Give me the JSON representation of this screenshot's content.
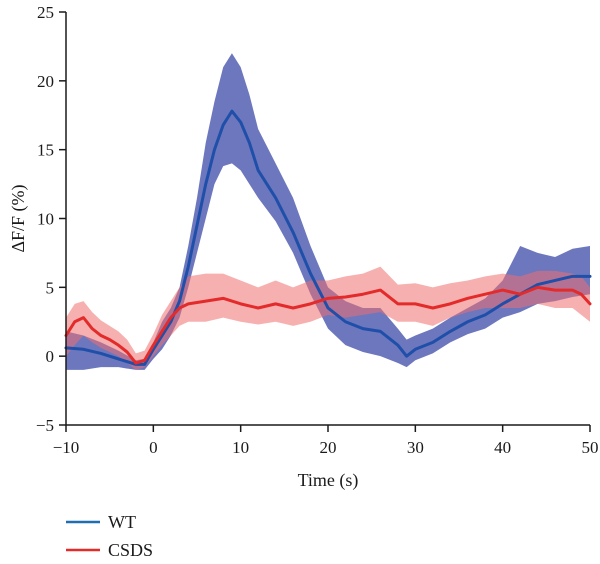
{
  "chart_data": {
    "type": "line",
    "xlabel": "Time (s)",
    "ylabel": "ΔF/F (%)",
    "xlim": [
      -10,
      50
    ],
    "ylim": [
      -5,
      25
    ],
    "xticks": [
      -10,
      0,
      10,
      20,
      30,
      40,
      50
    ],
    "yticks": [
      -5,
      0,
      5,
      10,
      15,
      20,
      25
    ],
    "xtick_labels": [
      "−10",
      "0",
      "10",
      "20",
      "30",
      "40",
      "50"
    ],
    "ytick_labels": [
      "−5",
      "0",
      "5",
      "10",
      "15",
      "20",
      "25"
    ],
    "grid": false,
    "legend_position": "bottom-left",
    "series": [
      {
        "name": "WT",
        "color": "#1f4fa8",
        "band_color": "#3b4aa8",
        "legend_color": "#1f6fb0",
        "x": [
          -10,
          -8,
          -6,
          -4,
          -2,
          -1,
          0,
          1,
          2,
          3,
          4,
          5,
          6,
          7,
          8,
          9,
          10,
          11,
          12,
          14,
          16,
          18,
          20,
          22,
          24,
          26,
          28,
          29,
          30,
          32,
          34,
          36,
          38,
          40,
          42,
          44,
          46,
          48,
          50
        ],
        "values": [
          0.6,
          0.5,
          0.2,
          -0.2,
          -0.6,
          -0.6,
          0.5,
          1.5,
          2.5,
          4.0,
          6.5,
          9.5,
          12.5,
          15.0,
          16.8,
          17.8,
          17.0,
          15.5,
          13.5,
          11.5,
          9.0,
          6.0,
          3.5,
          2.5,
          2.0,
          1.8,
          0.8,
          0.0,
          0.5,
          1.0,
          1.8,
          2.5,
          3.0,
          3.8,
          4.5,
          5.2,
          5.5,
          5.8,
          5.8
        ],
        "lower": [
          -1.0,
          -1.0,
          -0.8,
          -0.8,
          -1.0,
          -1.0,
          -0.2,
          0.5,
          1.5,
          2.8,
          5.0,
          7.5,
          10.0,
          12.5,
          13.8,
          14.0,
          13.5,
          12.5,
          11.5,
          9.8,
          7.5,
          4.5,
          2.0,
          0.8,
          0.3,
          0.0,
          -0.5,
          -0.8,
          -0.3,
          0.2,
          1.0,
          1.6,
          2.0,
          2.8,
          3.2,
          3.8,
          4.0,
          4.3,
          4.5
        ],
        "upper": [
          1.8,
          1.5,
          1.0,
          0.4,
          -0.3,
          -0.2,
          1.0,
          2.5,
          3.5,
          5.0,
          8.0,
          11.5,
          15.5,
          18.5,
          21.0,
          22.0,
          21.0,
          19.0,
          16.5,
          14.0,
          11.5,
          8.0,
          5.0,
          4.0,
          3.5,
          3.5,
          2.0,
          1.2,
          1.5,
          2.0,
          2.8,
          3.5,
          4.2,
          5.5,
          8.0,
          7.5,
          7.2,
          7.8,
          8.0
        ]
      },
      {
        "name": "CSDS",
        "color": "#e32b2b",
        "band_color": "#ee6f6f",
        "legend_color": "#e32b2b",
        "x": [
          -10,
          -9,
          -8,
          -7,
          -6,
          -5,
          -4,
          -3,
          -2,
          -1,
          0,
          1,
          2,
          3,
          4,
          6,
          8,
          10,
          12,
          14,
          16,
          18,
          20,
          22,
          24,
          26,
          28,
          30,
          32,
          34,
          36,
          38,
          40,
          42,
          44,
          46,
          48,
          49,
          50
        ],
        "values": [
          1.5,
          2.5,
          2.8,
          2.0,
          1.5,
          1.2,
          0.8,
          0.3,
          -0.5,
          -0.3,
          0.8,
          1.8,
          2.8,
          3.5,
          3.8,
          4.0,
          4.2,
          3.8,
          3.5,
          3.8,
          3.5,
          3.8,
          4.2,
          4.3,
          4.5,
          4.8,
          3.8,
          3.8,
          3.5,
          3.8,
          4.2,
          4.5,
          4.8,
          4.5,
          5.0,
          4.8,
          4.8,
          4.5,
          3.8
        ],
        "lower": [
          0.0,
          0.8,
          1.5,
          1.0,
          0.6,
          0.3,
          0.0,
          -0.5,
          -1.0,
          -0.8,
          0.0,
          0.8,
          1.5,
          2.2,
          2.5,
          2.5,
          2.8,
          2.5,
          2.3,
          2.5,
          2.2,
          2.5,
          3.0,
          2.8,
          3.0,
          3.2,
          2.5,
          2.5,
          2.2,
          2.8,
          3.2,
          3.5,
          3.5,
          3.5,
          3.8,
          3.5,
          3.5,
          3.0,
          2.5
        ],
        "upper": [
          2.8,
          3.8,
          4.0,
          3.2,
          2.6,
          2.2,
          1.8,
          1.2,
          0.2,
          0.4,
          1.6,
          3.0,
          4.0,
          5.0,
          5.8,
          6.0,
          6.0,
          5.5,
          5.0,
          5.5,
          5.0,
          5.5,
          5.5,
          5.8,
          6.0,
          6.5,
          5.2,
          5.3,
          5.0,
          5.3,
          5.5,
          5.8,
          6.0,
          5.8,
          6.2,
          6.2,
          6.0,
          5.8,
          5.0
        ]
      }
    ]
  }
}
